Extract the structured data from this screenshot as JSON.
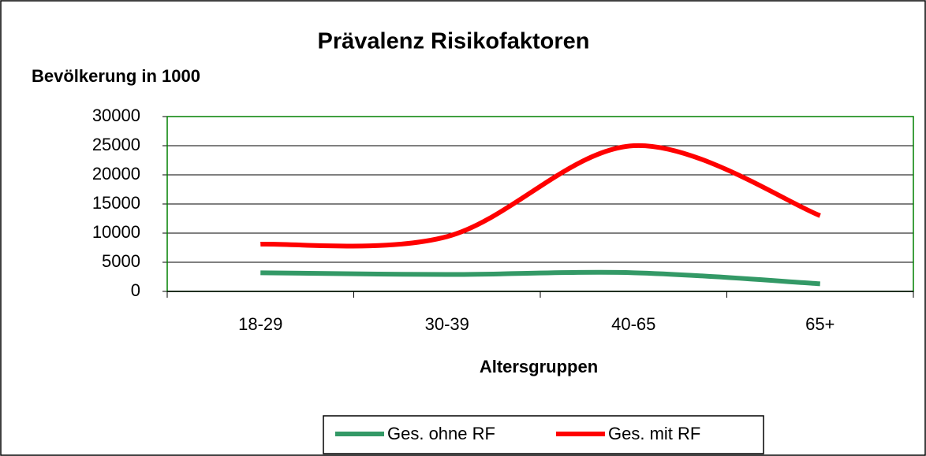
{
  "chart_data": {
    "type": "line",
    "title": "Prävalenz Risikofaktoren",
    "y_label": "Bevölkerung in 1000",
    "x_label": "Altersgruppen",
    "categories": [
      "18-29",
      "30-39",
      "40-65",
      "65+"
    ],
    "series": [
      {
        "name": "Ges. ohne RF",
        "color": "#339966",
        "values": [
          3200,
          2900,
          3200,
          1300
        ]
      },
      {
        "name": "Ges. mit RF",
        "color": "#ff0000",
        "values": [
          8100,
          9400,
          25000,
          13000
        ]
      }
    ],
    "ylim": [
      0,
      30000
    ],
    "yticks": [
      0,
      5000,
      10000,
      15000,
      20000,
      25000,
      30000
    ],
    "grid": true,
    "smooth": true,
    "legend": "bottom"
  }
}
